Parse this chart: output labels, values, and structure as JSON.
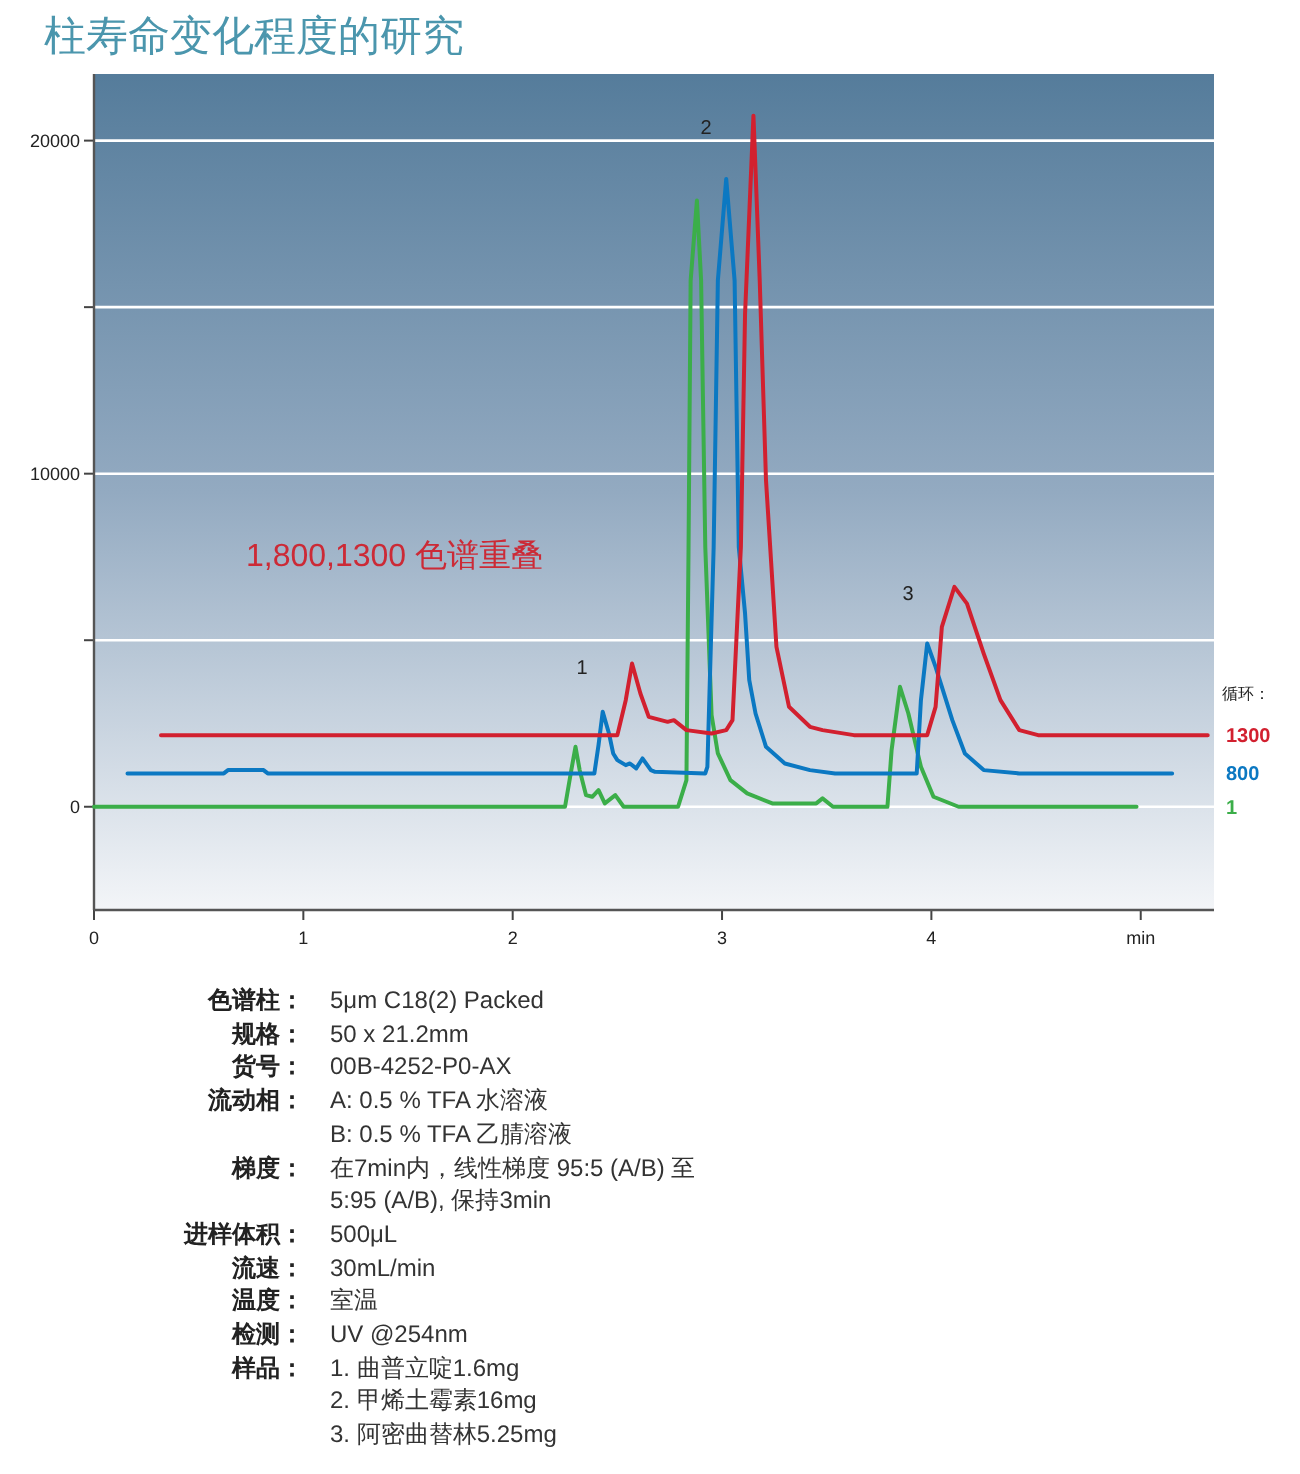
{
  "chart_data": {
    "type": "line",
    "title": "柱寿命变化程度的研究",
    "legend_title": "循环：",
    "xlim": [
      0,
      5.35
    ],
    "xticks": [
      0,
      1,
      2,
      3,
      4,
      {
        "value": 5,
        "label": "min"
      }
    ],
    "ylim": [
      -3100,
      22000
    ],
    "yticks": [
      0,
      {
        "value": 5000,
        "label": null
      },
      10000,
      {
        "value": 15000,
        "label": null
      },
      20000
    ],
    "grid": "y",
    "series": [
      {
        "name": "1",
        "color": "#3bae49",
        "x": [
          0,
          2.25,
          2.28,
          2.3,
          2.32,
          2.35,
          2.38,
          2.41,
          2.44,
          2.49,
          2.53,
          2.79,
          2.83,
          2.84,
          2.85,
          2.88,
          2.9,
          2.92,
          2.95,
          2.98,
          3.04,
          3.12,
          3.24,
          3.45,
          3.48,
          3.53,
          3.79,
          3.81,
          3.85,
          3.89,
          3.95,
          4.01,
          4.13,
          4.98
        ],
        "values": [
          0,
          0,
          1100,
          1800,
          1100,
          350,
          300,
          500,
          100,
          350,
          0,
          0,
          800,
          7800,
          15800,
          18200,
          15800,
          7800,
          2750,
          1600,
          800,
          400,
          100,
          100,
          250,
          0,
          0,
          1700,
          3600,
          2800,
          1200,
          300,
          0,
          0
        ]
      },
      {
        "name": "800",
        "color": "#0b78c2",
        "x": [
          0.16,
          0.62,
          0.64,
          0.81,
          0.83,
          2.39,
          2.41,
          2.43,
          2.46,
          2.48,
          2.5,
          2.54,
          2.56,
          2.59,
          2.62,
          2.66,
          2.68,
          2.92,
          2.93,
          2.96,
          2.98,
          3.02,
          3.06,
          3.08,
          3.11,
          3.13,
          3.16,
          3.21,
          3.3,
          3.42,
          3.54,
          3.93,
          3.95,
          3.98,
          4.02,
          4.1,
          4.16,
          4.25,
          4.42,
          5.15
        ],
        "values": [
          1000,
          1000,
          1100,
          1100,
          1000,
          1000,
          1850,
          2850,
          2200,
          1600,
          1400,
          1250,
          1300,
          1150,
          1450,
          1100,
          1050,
          1000,
          1200,
          7800,
          15800,
          18850,
          15800,
          7800,
          5800,
          3800,
          2800,
          1800,
          1300,
          1100,
          1000,
          1000,
          3200,
          4900,
          4200,
          2600,
          1600,
          1100,
          1000,
          1000
        ]
      },
      {
        "name": "1300",
        "color": "#d2202f",
        "x": [
          0.32,
          2.5,
          2.54,
          2.57,
          2.61,
          2.65,
          2.74,
          2.77,
          2.83,
          2.95,
          3.02,
          3.05,
          3.09,
          3.11,
          3.15,
          3.18,
          3.21,
          3.26,
          3.32,
          3.42,
          3.48,
          3.63,
          3.98,
          4.02,
          4.05,
          4.11,
          4.17,
          4.25,
          4.33,
          4.42,
          4.51,
          5.32
        ],
        "values": [
          2150,
          2150,
          3200,
          4300,
          3400,
          2700,
          2550,
          2600,
          2300,
          2200,
          2300,
          2600,
          7800,
          14800,
          20750,
          15800,
          9800,
          4800,
          3000,
          2400,
          2300,
          2150,
          2150,
          3000,
          5400,
          6600,
          6100,
          4600,
          3200,
          2300,
          2150,
          2150
        ]
      }
    ],
    "annotations": [
      "1,800,1300 色谱重叠",
      "1",
      "2",
      "3",
      "色谱柱：",
      "5μm C18(2) Packed",
      "规格：",
      "50 x 21.2mm",
      "货号：",
      "00B-4252-P0-AX",
      "流动相：",
      "A: 0.5 % TFA 水溶液\nB: 0.5 % TFA 乙腈溶液",
      "梯度：",
      "在7min内，线性梯度 95:5 (A/B) 至 5:95 (A/B), 保持3min",
      "进样体积：",
      "500μL",
      "流速：",
      "30mL/min",
      "温度：",
      "室温",
      "检测：",
      "UV @254nm",
      "样品：",
      "1. 曲普立啶1.6mg\n2. 甲烯土霉素16mg\n3. 阿密曲替林5.25mg"
    ]
  }
}
